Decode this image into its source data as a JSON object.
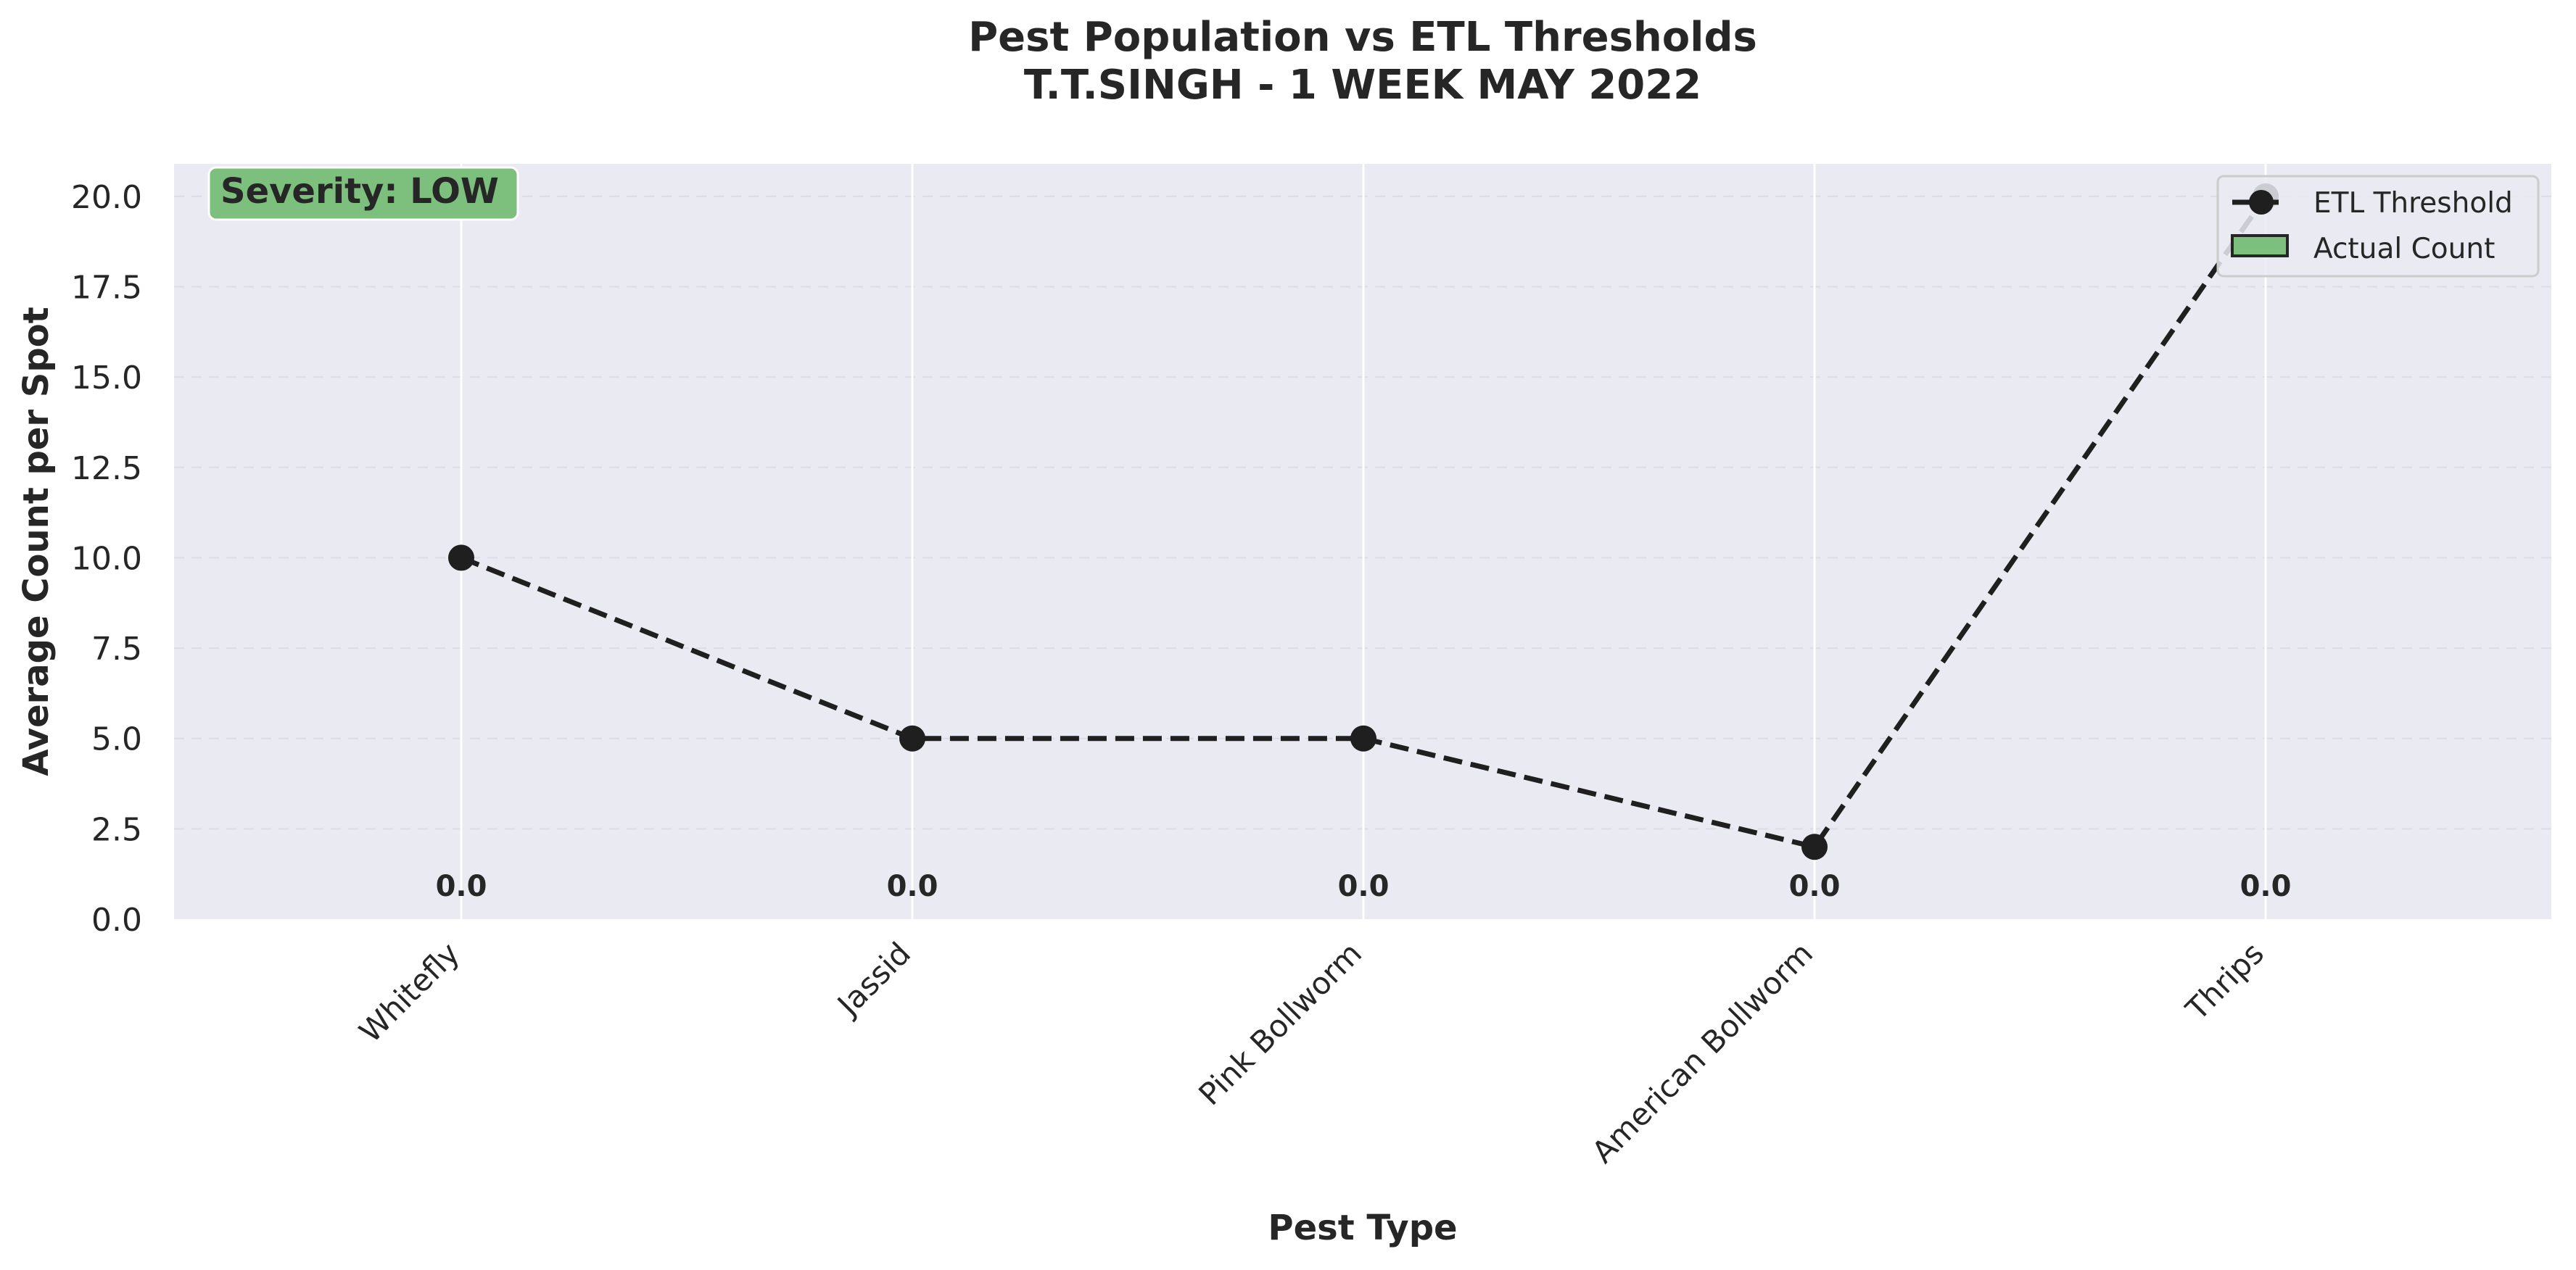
{
  "chart_data": {
    "type": "line",
    "title": "Pest Population vs ETL Thresholds",
    "subtitle": "T.T.SINGH - 1 WEEK MAY 2022",
    "xlabel": "Pest Type",
    "ylabel": "Average Count per Spot",
    "categories": [
      "Whitefly",
      "Jassid",
      "Pink Bollworm",
      "American Bollworm",
      "Thrips"
    ],
    "ylim": [
      0,
      20.9
    ],
    "yticks": [
      "0.0",
      "2.5",
      "5.0",
      "7.5",
      "10.0",
      "12.5",
      "15.0",
      "17.5",
      "20.0"
    ],
    "grid": true,
    "legend_position": "top-right",
    "series": [
      {
        "name": "ETL Threshold",
        "type": "line",
        "style": "dashed",
        "marker": "circle",
        "color": "#1f1f1f",
        "values": [
          10,
          5,
          5,
          2,
          20
        ]
      },
      {
        "name": "Actual Count",
        "type": "bar",
        "color": "#7dbf7d",
        "values": [
          0,
          0,
          0,
          0,
          0
        ]
      }
    ],
    "data_labels": [
      "0.0",
      "0.0",
      "0.0",
      "0.0",
      "0.0"
    ],
    "annotation": {
      "text": "Severity: LOW",
      "color": "#7dbf7d"
    }
  }
}
